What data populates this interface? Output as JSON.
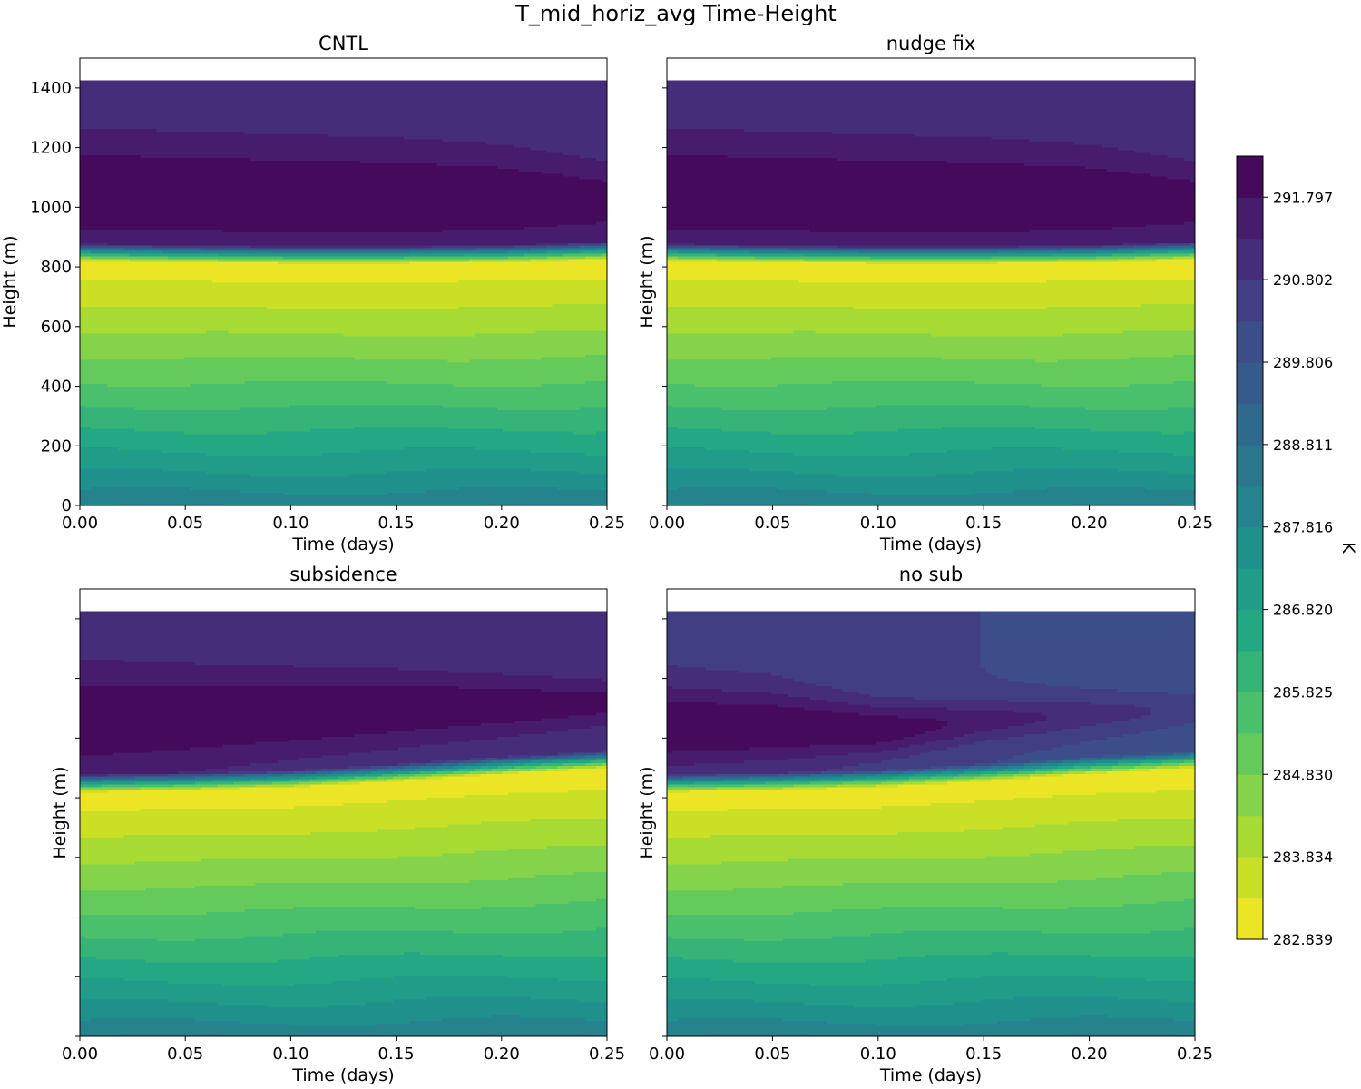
{
  "chart_data": {
    "type": "heatmap",
    "title": "T_mid_horiz_avg Time-Height",
    "variable": "T_mid_horiz_avg",
    "xlabel": "Time (days)",
    "ylabel": "Height (m)",
    "xlim": [
      0,
      0.25
    ],
    "ylim": [
      0,
      1500
    ],
    "data_top_height": 1425,
    "xticks": [
      "0.00",
      "0.05",
      "0.10",
      "0.15",
      "0.20",
      "0.25"
    ],
    "yticks": [
      "0",
      "200",
      "400",
      "600",
      "800",
      "1000",
      "1200",
      "1400"
    ],
    "colorbar": {
      "label": "K",
      "min": 282.839,
      "max": 292.293,
      "n_levels": 19,
      "ticks": [
        "291.797",
        "290.802",
        "289.806",
        "288.811",
        "287.816",
        "286.820",
        "285.825",
        "284.830",
        "283.834",
        "282.839"
      ],
      "colormap": "viridis_r"
    },
    "panels": [
      {
        "title": "CNTL",
        "show_ytick_labels": true,
        "inversion_height": [
          820,
          815,
          812,
          812,
          815,
          825
        ],
        "surface_temperature": [
          288.3,
          288.3,
          288.3,
          288.3,
          288.3,
          288.3
        ],
        "top_temperature": [
          291.0,
          291.0,
          291.0,
          291.0,
          291.0,
          291.0
        ],
        "upper_max_temperature": [
          292.3,
          292.3,
          292.3,
          292.3,
          292.3,
          292.1
        ],
        "upper_max_height": [
          1050,
          1045,
          1040,
          1035,
          1030,
          1020
        ],
        "upper_max_width": [
          180,
          175,
          170,
          165,
          150,
          120
        ]
      },
      {
        "title": "nudge fix",
        "show_ytick_labels": false,
        "inversion_height": [
          820,
          815,
          812,
          812,
          815,
          825
        ],
        "surface_temperature": [
          288.3,
          288.3,
          288.3,
          288.3,
          288.3,
          288.3
        ],
        "top_temperature": [
          291.0,
          291.0,
          291.0,
          291.0,
          291.0,
          291.0
        ],
        "upper_max_temperature": [
          292.3,
          292.3,
          292.3,
          292.3,
          292.3,
          292.1
        ],
        "upper_max_height": [
          1050,
          1045,
          1040,
          1035,
          1030,
          1020
        ],
        "upper_max_width": [
          180,
          175,
          170,
          165,
          150,
          120
        ]
      },
      {
        "title": "subsidence",
        "show_ytick_labels": false,
        "inversion_height": [
          820,
          825,
          835,
          855,
          880,
          900
        ],
        "surface_temperature": [
          288.3,
          288.3,
          288.3,
          288.3,
          288.3,
          288.3
        ],
        "top_temperature": [
          291.0,
          291.0,
          291.0,
          291.0,
          291.0,
          291.0
        ],
        "upper_max_temperature": [
          292.3,
          292.3,
          292.3,
          292.3,
          292.2,
          292.0
        ],
        "upper_max_height": [
          1060,
          1070,
          1085,
          1100,
          1110,
          1120
        ],
        "upper_max_width": [
          170,
          150,
          130,
          110,
          90,
          70
        ]
      },
      {
        "title": "no sub",
        "show_ytick_labels": false,
        "inversion_height": [
          820,
          825,
          835,
          855,
          880,
          900
        ],
        "surface_temperature": [
          288.3,
          288.3,
          288.3,
          288.3,
          288.3,
          288.3
        ],
        "top_temperature": [
          290.6,
          290.6,
          290.4,
          290.3,
          290.2,
          290.1
        ],
        "upper_max_temperature": [
          292.3,
          292.3,
          292.2,
          291.6,
          291.1,
          290.6
        ],
        "upper_max_height": [
          1040,
          1040,
          1030,
          1060,
          1080,
          1100
        ],
        "upper_max_width": [
          140,
          120,
          90,
          70,
          60,
          50
        ]
      }
    ]
  }
}
